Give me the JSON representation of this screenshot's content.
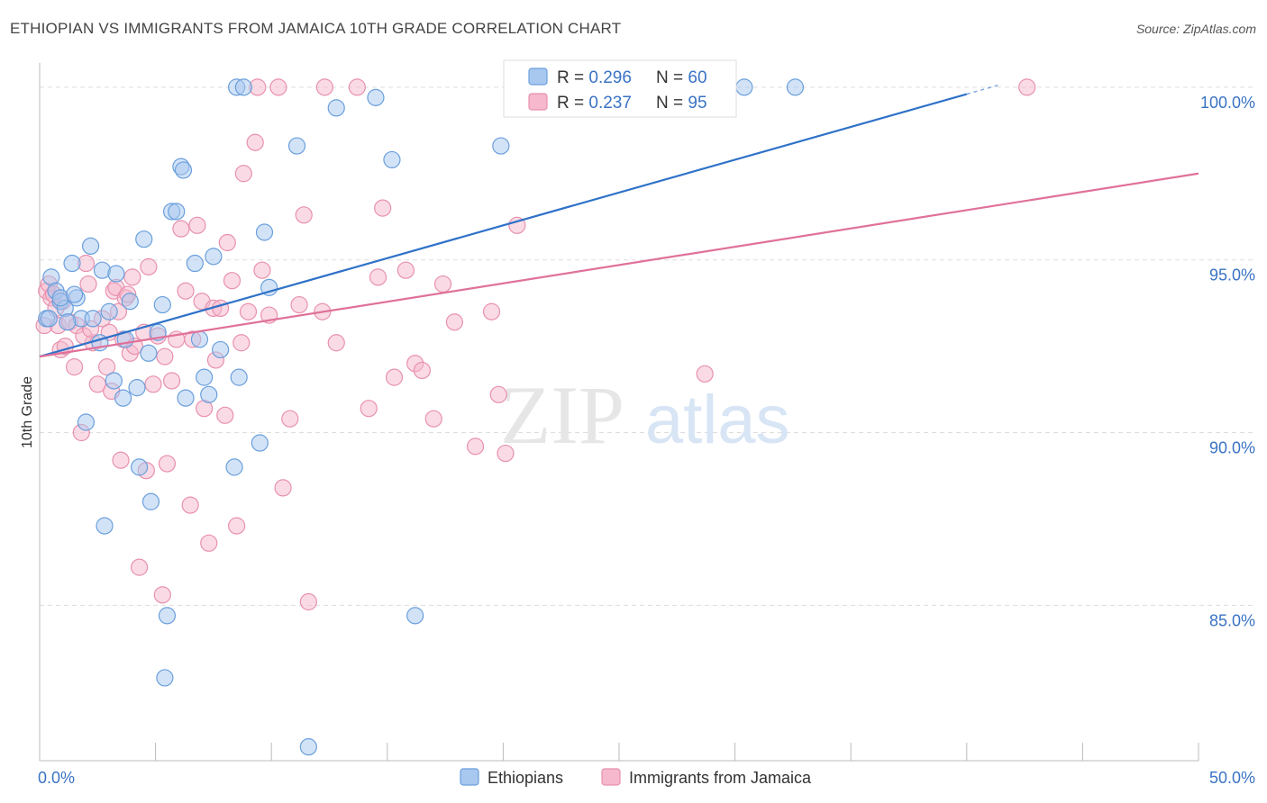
{
  "header": {
    "title": "ETHIOPIAN VS IMMIGRANTS FROM JAMAICA 10TH GRADE CORRELATION CHART",
    "source": "Source: ZipAtlas.com"
  },
  "watermark": {
    "part1": "ZIP",
    "part2": "atlas"
  },
  "legend_top": [
    {
      "r_label": "R = ",
      "r_value": "0.296",
      "n_label": "N = ",
      "n_value": "60"
    },
    {
      "r_label": "R = ",
      "r_value": "0.237",
      "n_label": "N = ",
      "n_value": "95"
    }
  ],
  "colors": {
    "blue_fill": "#a8c8f0",
    "blue_stroke": "#6a9fdc",
    "blue_line": "#2f72c8",
    "pink_fill": "#f5b8cc",
    "pink_stroke": "#e891ad",
    "pink_line": "#e0719a",
    "value_text": "#3a73c4",
    "grid": "#dddddd"
  },
  "chart_data": {
    "type": "scatter",
    "title": "ETHIOPIAN VS IMMIGRANTS FROM JAMAICA 10TH GRADE CORRELATION CHART",
    "xlabel": "",
    "ylabel": "10th Grade",
    "xlim": [
      0,
      50
    ],
    "ylim": [
      80.5,
      100.7
    ],
    "x_tick_labels": [
      "0.0%",
      "50.0%"
    ],
    "y_ticks": [
      85,
      90,
      95,
      100
    ],
    "y_tick_labels": [
      "85.0%",
      "90.0%",
      "95.0%",
      "100.0%"
    ],
    "grid": true,
    "legend": {
      "position": "bottom-center",
      "entries": [
        "Ethiopians",
        "Immigrants from Jamaica"
      ]
    },
    "series": [
      {
        "name": "Ethiopians",
        "R": 0.296,
        "N": 60,
        "trend": {
          "x": [
            0,
            40
          ],
          "y": [
            92.2,
            99.8
          ]
        },
        "points": [
          [
            0.3,
            93.3
          ],
          [
            0.5,
            94.5
          ],
          [
            0.7,
            94.1
          ],
          [
            0.9,
            93.8
          ],
          [
            1.1,
            93.6
          ],
          [
            1.4,
            94.9
          ],
          [
            1.6,
            93.9
          ],
          [
            1.8,
            93.3
          ],
          [
            2.2,
            95.4
          ],
          [
            2.3,
            93.3
          ],
          [
            2.7,
            94.7
          ],
          [
            3.3,
            94.6
          ],
          [
            3.7,
            92.7
          ],
          [
            3.9,
            93.8
          ],
          [
            4.2,
            91.3
          ],
          [
            4.3,
            89.0
          ],
          [
            4.5,
            95.6
          ],
          [
            4.7,
            92.3
          ],
          [
            4.8,
            88.0
          ],
          [
            5.1,
            92.9
          ],
          [
            5.3,
            93.7
          ],
          [
            5.4,
            82.9
          ],
          [
            5.5,
            84.7
          ],
          [
            5.7,
            96.4
          ],
          [
            5.9,
            96.4
          ],
          [
            6.1,
            97.7
          ],
          [
            6.2,
            97.6
          ],
          [
            6.3,
            91.0
          ],
          [
            6.7,
            94.9
          ],
          [
            6.9,
            92.7
          ],
          [
            7.1,
            91.6
          ],
          [
            7.3,
            91.1
          ],
          [
            7.5,
            95.1
          ],
          [
            7.8,
            92.4
          ],
          [
            8.4,
            89.0
          ],
          [
            8.5,
            100.0
          ],
          [
            8.8,
            100.0
          ],
          [
            8.6,
            91.6
          ],
          [
            9.5,
            89.7
          ],
          [
            9.7,
            95.8
          ],
          [
            9.9,
            94.2
          ],
          [
            11.1,
            98.3
          ],
          [
            11.6,
            80.9
          ],
          [
            12.8,
            99.4
          ],
          [
            14.5,
            99.7
          ],
          [
            15.2,
            97.9
          ],
          [
            16.2,
            84.7
          ],
          [
            19.9,
            98.3
          ],
          [
            30.4,
            100.0
          ],
          [
            32.6,
            100.0
          ],
          [
            0.4,
            93.3
          ],
          [
            0.9,
            93.9
          ],
          [
            1.2,
            93.2
          ],
          [
            1.5,
            94.0
          ],
          [
            2.8,
            87.3
          ],
          [
            2.0,
            90.3
          ],
          [
            3.2,
            91.5
          ],
          [
            3.6,
            91.0
          ],
          [
            2.6,
            92.6
          ],
          [
            3.0,
            93.5
          ]
        ]
      },
      {
        "name": "Immigrants from Jamaica",
        "R": 0.237,
        "N": 95,
        "trend": {
          "x": [
            0,
            50
          ],
          "y": [
            92.2,
            97.5
          ]
        },
        "points": [
          [
            0.2,
            93.1
          ],
          [
            0.3,
            94.1
          ],
          [
            0.4,
            94.3
          ],
          [
            0.5,
            93.9
          ],
          [
            0.6,
            94.0
          ],
          [
            0.7,
            93.6
          ],
          [
            0.8,
            93.1
          ],
          [
            0.9,
            92.4
          ],
          [
            1.0,
            93.8
          ],
          [
            1.1,
            92.5
          ],
          [
            1.3,
            93.2
          ],
          [
            1.5,
            91.9
          ],
          [
            1.6,
            93.1
          ],
          [
            1.8,
            90.0
          ],
          [
            2.0,
            94.9
          ],
          [
            2.1,
            94.3
          ],
          [
            2.3,
            92.6
          ],
          [
            2.5,
            91.4
          ],
          [
            2.7,
            93.3
          ],
          [
            2.9,
            91.9
          ],
          [
            3.0,
            92.9
          ],
          [
            3.1,
            91.2
          ],
          [
            3.2,
            94.1
          ],
          [
            3.3,
            94.2
          ],
          [
            3.4,
            93.5
          ],
          [
            3.5,
            89.2
          ],
          [
            3.6,
            92.7
          ],
          [
            3.7,
            93.9
          ],
          [
            3.8,
            94.0
          ],
          [
            3.9,
            92.3
          ],
          [
            4.1,
            92.5
          ],
          [
            4.3,
            86.1
          ],
          [
            4.5,
            92.9
          ],
          [
            4.6,
            88.9
          ],
          [
            4.7,
            94.8
          ],
          [
            4.9,
            91.4
          ],
          [
            5.1,
            92.8
          ],
          [
            5.3,
            85.3
          ],
          [
            5.5,
            89.1
          ],
          [
            5.7,
            91.5
          ],
          [
            5.9,
            92.7
          ],
          [
            6.1,
            95.9
          ],
          [
            6.3,
            94.1
          ],
          [
            6.5,
            87.9
          ],
          [
            6.8,
            96.0
          ],
          [
            7.0,
            93.8
          ],
          [
            7.1,
            90.7
          ],
          [
            7.3,
            86.8
          ],
          [
            7.5,
            93.6
          ],
          [
            7.8,
            93.6
          ],
          [
            8.0,
            90.5
          ],
          [
            8.1,
            95.5
          ],
          [
            8.3,
            94.4
          ],
          [
            8.5,
            87.3
          ],
          [
            8.8,
            97.5
          ],
          [
            9.0,
            93.5
          ],
          [
            9.3,
            98.4
          ],
          [
            9.6,
            94.7
          ],
          [
            9.9,
            93.4
          ],
          [
            10.5,
            88.4
          ],
          [
            10.8,
            90.4
          ],
          [
            11.2,
            93.7
          ],
          [
            11.4,
            96.3
          ],
          [
            11.6,
            85.1
          ],
          [
            12.2,
            93.5
          ],
          [
            12.8,
            92.6
          ],
          [
            13.7,
            100.0
          ],
          [
            14.2,
            90.7
          ],
          [
            14.6,
            94.5
          ],
          [
            14.8,
            96.5
          ],
          [
            15.3,
            91.6
          ],
          [
            15.8,
            94.7
          ],
          [
            16.2,
            92.0
          ],
          [
            16.5,
            91.8
          ],
          [
            17.0,
            90.4
          ],
          [
            17.4,
            94.3
          ],
          [
            17.9,
            93.2
          ],
          [
            18.8,
            89.6
          ],
          [
            19.5,
            93.5
          ],
          [
            19.8,
            91.1
          ],
          [
            20.1,
            89.4
          ],
          [
            20.6,
            96.0
          ],
          [
            21.0,
            100.0
          ],
          [
            28.7,
            91.7
          ],
          [
            42.6,
            100.0
          ],
          [
            10.3,
            100.0
          ],
          [
            12.3,
            100.0
          ],
          [
            9.4,
            100.0
          ],
          [
            1.9,
            92.8
          ],
          [
            2.2,
            93.0
          ],
          [
            6.6,
            92.7
          ],
          [
            7.6,
            92.1
          ],
          [
            8.7,
            92.6
          ],
          [
            5.4,
            92.2
          ],
          [
            4.0,
            94.5
          ]
        ]
      }
    ]
  }
}
